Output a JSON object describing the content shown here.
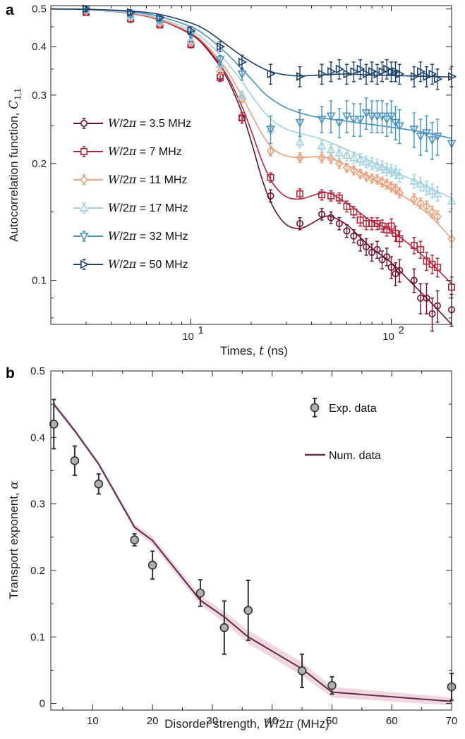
{
  "chart_data": [
    {
      "panel": "a",
      "type": "scatter",
      "xscale": "log",
      "yscale": "log",
      "xlim": [
        2,
        200
      ],
      "ylim": [
        0.077,
        0.51
      ],
      "xlabel": "Times, t (ns)",
      "ylabel": "Autocorrelation function, C1,1",
      "xticks": [
        "10",
        "10"
      ],
      "xtick_exponents": [
        "1",
        "2"
      ],
      "xtick_values": [
        10,
        100
      ],
      "yticks": [
        "0.5",
        "0.4",
        "0.3",
        "0.2",
        "0.1"
      ],
      "ytick_values": [
        0.5,
        0.4,
        0.3,
        0.2,
        0.1
      ],
      "legend_location": "center-left",
      "series": [
        {
          "name": "W/2π = 3.5 MHz",
          "color": "#6d0f2a",
          "marker": "circle",
          "x": [
            3,
            5,
            7,
            10,
            14,
            18,
            25,
            35,
            45,
            50,
            55,
            60,
            65,
            70,
            75,
            80,
            85,
            90,
            95,
            100,
            105,
            110,
            130,
            140,
            150,
            160,
            170,
            200
          ],
          "y": [
            0.49,
            0.47,
            0.455,
            0.405,
            0.335,
            0.262,
            0.165,
            0.14,
            0.148,
            0.145,
            0.14,
            0.134,
            0.13,
            0.125,
            0.122,
            0.118,
            0.12,
            0.113,
            0.115,
            0.108,
            0.104,
            0.106,
            0.1,
            0.09,
            0.09,
            0.082,
            0.086,
            0.084
          ],
          "err": [
            0.008,
            0.008,
            0.008,
            0.008,
            0.008,
            0.008,
            0.006,
            0.005,
            0.005,
            0.005,
            0.005,
            0.005,
            0.005,
            0.006,
            0.006,
            0.006,
            0.006,
            0.006,
            0.006,
            0.007,
            0.007,
            0.007,
            0.007,
            0.008,
            0.008,
            0.008,
            0.008,
            0.008
          ],
          "fit_x": [
            2,
            3,
            5,
            7,
            10,
            12,
            15,
            18,
            20,
            23,
            26,
            30,
            35,
            40,
            45,
            50,
            60,
            70,
            80,
            100,
            130,
            160,
            200
          ],
          "fit_y": [
            0.5,
            0.498,
            0.487,
            0.468,
            0.43,
            0.395,
            0.335,
            0.27,
            0.228,
            0.178,
            0.153,
            0.139,
            0.136,
            0.14,
            0.145,
            0.146,
            0.139,
            0.129,
            0.121,
            0.111,
            0.097,
            0.087,
            0.077
          ]
        },
        {
          "name": "W/2π = 7 MHz",
          "color": "#b3283c",
          "marker": "square",
          "x": [
            3,
            5,
            7,
            10,
            14,
            18,
            25,
            35,
            45,
            50,
            55,
            60,
            65,
            70,
            75,
            80,
            85,
            90,
            95,
            100,
            105,
            110,
            130,
            140,
            150,
            160,
            170,
            200
          ],
          "y": [
            0.49,
            0.472,
            0.455,
            0.405,
            0.333,
            0.262,
            0.184,
            0.167,
            0.166,
            0.165,
            0.163,
            0.155,
            0.15,
            0.143,
            0.14,
            0.14,
            0.14,
            0.138,
            0.135,
            0.138,
            0.132,
            0.128,
            0.123,
            0.12,
            0.112,
            0.11,
            0.108,
            0.096
          ],
          "err": [
            0.008,
            0.008,
            0.008,
            0.008,
            0.008,
            0.008,
            0.005,
            0.005,
            0.005,
            0.005,
            0.005,
            0.005,
            0.005,
            0.005,
            0.005,
            0.005,
            0.005,
            0.005,
            0.005,
            0.006,
            0.006,
            0.006,
            0.006,
            0.006,
            0.006,
            0.006,
            0.006,
            0.006
          ],
          "fit_x": [
            2,
            3,
            5,
            7,
            10,
            12,
            15,
            18,
            20,
            23,
            26,
            30,
            35,
            40,
            45,
            50,
            60,
            70,
            80,
            100,
            130,
            160,
            200
          ],
          "fit_y": [
            0.5,
            0.498,
            0.487,
            0.468,
            0.432,
            0.398,
            0.34,
            0.28,
            0.243,
            0.199,
            0.176,
            0.164,
            0.162,
            0.165,
            0.168,
            0.167,
            0.158,
            0.149,
            0.142,
            0.134,
            0.121,
            0.11,
            0.098
          ]
        },
        {
          "name": "W/2π = 11 MHz",
          "color": "#e8a07e",
          "marker": "diamond",
          "x": [
            3,
            5,
            7,
            10,
            14,
            18,
            25,
            35,
            45,
            50,
            55,
            60,
            65,
            70,
            75,
            80,
            85,
            90,
            95,
            100,
            105,
            110,
            130,
            140,
            150,
            160,
            170,
            200
          ],
          "y": [
            0.495,
            0.478,
            0.46,
            0.412,
            0.345,
            0.293,
            0.215,
            0.207,
            0.207,
            0.206,
            0.2,
            0.195,
            0.192,
            0.188,
            0.185,
            0.183,
            0.182,
            0.179,
            0.177,
            0.174,
            0.172,
            0.168,
            0.162,
            0.158,
            0.155,
            0.15,
            0.146,
            0.128
          ],
          "err": [
            0.007,
            0.007,
            0.007,
            0.007,
            0.007,
            0.006,
            0.006,
            0.006,
            0.006,
            0.006,
            0.006,
            0.005,
            0.005,
            0.005,
            0.005,
            0.005,
            0.005,
            0.005,
            0.005,
            0.005,
            0.005,
            0.005,
            0.005,
            0.005,
            0.005,
            0.005,
            0.005,
            0.006
          ],
          "fit_x": [
            2,
            3,
            5,
            7,
            10,
            12,
            15,
            18,
            20,
            23,
            26,
            30,
            35,
            40,
            45,
            50,
            60,
            70,
            80,
            100,
            130,
            160,
            200
          ],
          "fit_y": [
            0.5,
            0.498,
            0.488,
            0.47,
            0.434,
            0.402,
            0.35,
            0.298,
            0.268,
            0.235,
            0.217,
            0.209,
            0.207,
            0.208,
            0.208,
            0.206,
            0.198,
            0.19,
            0.183,
            0.172,
            0.158,
            0.145,
            0.128
          ]
        },
        {
          "name": "W/2π = 17 MHz",
          "color": "#a3d1e0",
          "marker": "triangle-up",
          "x": [
            3,
            5,
            7,
            10,
            14,
            18,
            25,
            35,
            45,
            50,
            55,
            60,
            65,
            70,
            75,
            80,
            85,
            90,
            95,
            100,
            105,
            110,
            130,
            140,
            150,
            160,
            170,
            200
          ],
          "y": [
            0.497,
            0.48,
            0.465,
            0.415,
            0.36,
            0.3,
            0.245,
            0.227,
            0.222,
            0.217,
            0.213,
            0.21,
            0.207,
            0.205,
            0.202,
            0.2,
            0.198,
            0.196,
            0.193,
            0.192,
            0.19,
            0.186,
            0.18,
            0.177,
            0.173,
            0.17,
            0.167,
            0.16
          ],
          "err": [
            0.007,
            0.007,
            0.007,
            0.007,
            0.007,
            0.007,
            0.007,
            0.007,
            0.007,
            0.007,
            0.007,
            0.007,
            0.007,
            0.007,
            0.007,
            0.007,
            0.007,
            0.007,
            0.007,
            0.007,
            0.007,
            0.007,
            0.007,
            0.007,
            0.007,
            0.007,
            0.007,
            0.007
          ],
          "fit_x": [
            2,
            3,
            5,
            7,
            10,
            12,
            15,
            18,
            20,
            23,
            26,
            30,
            35,
            40,
            45,
            50,
            60,
            70,
            80,
            100,
            130,
            160,
            200
          ],
          "fit_y": [
            0.5,
            0.498,
            0.489,
            0.473,
            0.44,
            0.412,
            0.366,
            0.325,
            0.3,
            0.273,
            0.256,
            0.245,
            0.239,
            0.235,
            0.231,
            0.226,
            0.217,
            0.209,
            0.202,
            0.191,
            0.181,
            0.172,
            0.163
          ]
        },
        {
          "name": "W/2π = 32 MHz",
          "color": "#4a90bf",
          "marker": "triangle-down",
          "x": [
            3,
            5,
            7,
            10,
            14,
            18,
            25,
            35,
            45,
            50,
            55,
            60,
            65,
            70,
            75,
            80,
            85,
            90,
            95,
            100,
            105,
            110,
            130,
            140,
            150,
            160,
            170,
            200
          ],
          "y": [
            0.5,
            0.485,
            0.47,
            0.43,
            0.37,
            0.34,
            0.245,
            0.255,
            0.26,
            0.265,
            0.255,
            0.265,
            0.26,
            0.26,
            0.27,
            0.265,
            0.265,
            0.265,
            0.26,
            0.265,
            0.255,
            0.25,
            0.245,
            0.235,
            0.24,
            0.23,
            0.235,
            0.225
          ],
          "err": [
            0.008,
            0.008,
            0.008,
            0.008,
            0.01,
            0.012,
            0.02,
            0.02,
            0.02,
            0.025,
            0.022,
            0.025,
            0.025,
            0.025,
            0.025,
            0.025,
            0.025,
            0.025,
            0.025,
            0.025,
            0.025,
            0.025,
            0.025,
            0.025,
            0.025,
            0.025,
            0.025,
            0.025
          ],
          "fit_x": [
            2,
            3,
            5,
            7,
            10,
            12,
            15,
            18,
            20,
            23,
            26,
            30,
            35,
            40,
            45,
            50,
            60,
            70,
            80,
            100,
            130,
            160,
            200
          ],
          "fit_y": [
            0.5,
            0.499,
            0.492,
            0.478,
            0.45,
            0.425,
            0.385,
            0.35,
            0.33,
            0.305,
            0.29,
            0.278,
            0.27,
            0.265,
            0.262,
            0.26,
            0.257,
            0.254,
            0.252,
            0.248,
            0.243,
            0.238,
            0.232
          ]
        },
        {
          "name": "W/2π = 50 MHz",
          "color": "#1d4168",
          "marker": "triangle-right",
          "x": [
            3,
            5,
            7,
            10,
            14,
            18,
            25,
            35,
            45,
            50,
            55,
            60,
            65,
            70,
            75,
            80,
            85,
            90,
            95,
            100,
            105,
            110,
            130,
            140,
            150,
            160,
            170,
            200
          ],
          "y": [
            0.5,
            0.49,
            0.475,
            0.44,
            0.4,
            0.365,
            0.34,
            0.335,
            0.34,
            0.345,
            0.35,
            0.34,
            0.345,
            0.35,
            0.34,
            0.345,
            0.34,
            0.345,
            0.35,
            0.345,
            0.345,
            0.34,
            0.335,
            0.345,
            0.335,
            0.34,
            0.33,
            0.335
          ],
          "err": [
            0.008,
            0.008,
            0.008,
            0.01,
            0.012,
            0.015,
            0.02,
            0.02,
            0.02,
            0.02,
            0.02,
            0.02,
            0.02,
            0.02,
            0.02,
            0.02,
            0.02,
            0.02,
            0.02,
            0.02,
            0.02,
            0.02,
            0.02,
            0.02,
            0.02,
            0.02,
            0.02,
            0.02
          ],
          "fit_x": [
            2,
            3,
            5,
            7,
            10,
            12,
            15,
            18,
            20,
            23,
            26,
            30,
            35,
            40,
            45,
            50,
            60,
            70,
            80,
            100,
            130,
            160,
            200
          ],
          "fit_y": [
            0.5,
            0.499,
            0.494,
            0.484,
            0.46,
            0.44,
            0.405,
            0.378,
            0.365,
            0.351,
            0.343,
            0.338,
            0.336,
            0.337,
            0.338,
            0.339,
            0.34,
            0.339,
            0.338,
            0.337,
            0.336,
            0.335,
            0.334
          ]
        }
      ]
    },
    {
      "panel": "b",
      "type": "scatter",
      "xlim": [
        3,
        70
      ],
      "ylim": [
        -0.01,
        0.5
      ],
      "xlabel": "Disorder strength, W/2π (MHz)",
      "ylabel": "Transport exponent, α",
      "xticks": [
        "10",
        "20",
        "30",
        "40",
        "50",
        "60",
        "70"
      ],
      "xtick_values": [
        10,
        20,
        30,
        40,
        50,
        60,
        70
      ],
      "yticks": [
        "0",
        "0.1",
        "0.2",
        "0.3",
        "0.4",
        "0.5"
      ],
      "ytick_values": [
        0,
        0.1,
        0.2,
        0.3,
        0.4,
        0.5
      ],
      "legend_location": "top-right",
      "legend": [
        "Exp. data",
        "Num. data"
      ],
      "series": [
        {
          "name": "Exp. data",
          "color": "#333333",
          "marker": "circle",
          "x": [
            3.5,
            7,
            11,
            17,
            20,
            28,
            32,
            36,
            45,
            50,
            70
          ],
          "y": [
            0.42,
            0.365,
            0.33,
            0.246,
            0.208,
            0.166,
            0.114,
            0.14,
            0.049,
            0.027,
            0.025
          ],
          "err": [
            0.037,
            0.022,
            0.015,
            0.009,
            0.021,
            0.02,
            0.04,
            0.045,
            0.025,
            0.013,
            0.02
          ]
        },
        {
          "name": "Num. data",
          "color": "#5a2b50",
          "band_color": "#f2d6de",
          "type": "line",
          "x": [
            3.5,
            7,
            11,
            17,
            20,
            28,
            32,
            36,
            45,
            50,
            70
          ],
          "y": [
            0.45,
            0.41,
            0.36,
            0.265,
            0.245,
            0.155,
            0.13,
            0.1,
            0.052,
            0.017,
            0.003
          ],
          "band": [
            0.004,
            0.004,
            0.004,
            0.005,
            0.006,
            0.007,
            0.008,
            0.01,
            0.01,
            0.008,
            0.006
          ]
        }
      ]
    }
  ]
}
